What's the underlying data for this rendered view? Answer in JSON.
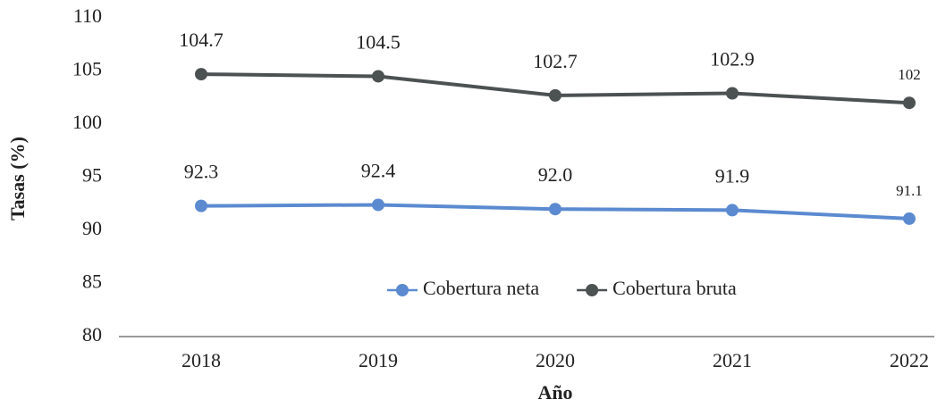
{
  "chart_data": {
    "type": "line",
    "x_label": "Año",
    "y_label": "Tasas (%)",
    "categories": [
      "2018",
      "2019",
      "2020",
      "2021",
      "2022"
    ],
    "series": [
      {
        "name": "Cobertura neta",
        "color": "#5b8ad0",
        "values": [
          92.3,
          92.4,
          92.0,
          91.9,
          91.1
        ],
        "value_labels": [
          "92.3",
          "92.4",
          "92.0",
          "91.9",
          "91.1"
        ]
      },
      {
        "name": "Cobertura bruta",
        "color": "#4c5152",
        "values": [
          104.7,
          104.5,
          102.7,
          102.9,
          102
        ],
        "value_labels": [
          "104.7",
          "104.5",
          "102.7",
          "102.9",
          "102"
        ]
      }
    ],
    "ylim": [
      80,
      110
    ],
    "yticks": [
      80,
      85,
      90,
      95,
      100,
      105,
      110
    ],
    "grid": false,
    "legend": "center"
  }
}
